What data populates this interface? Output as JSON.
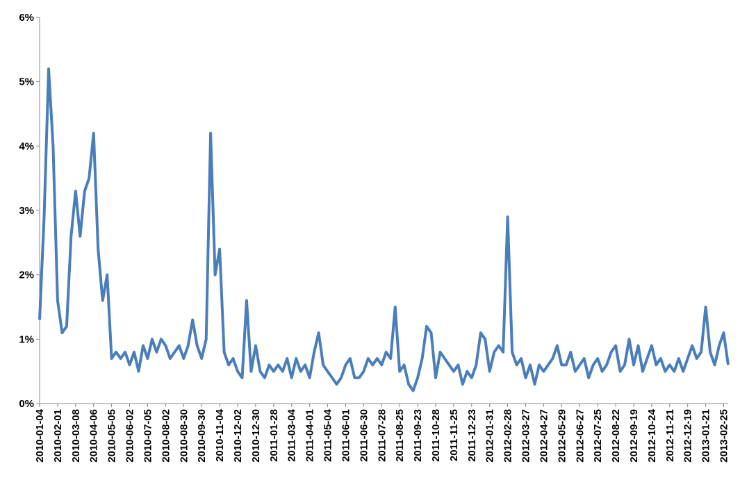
{
  "chart_data": {
    "type": "line",
    "categories": [
      "2010-01-04",
      null,
      null,
      null,
      "2010-02-01",
      null,
      null,
      null,
      "2010-03-08",
      null,
      null,
      null,
      "2010-04-06",
      null,
      null,
      null,
      "2010-05-05",
      null,
      null,
      null,
      "2010-06-02",
      null,
      null,
      null,
      "2010-07-05",
      null,
      null,
      null,
      "2010-08-02",
      null,
      null,
      null,
      "2010-08-30",
      null,
      null,
      null,
      "2010-09-30",
      null,
      null,
      null,
      "2010-11-04",
      null,
      null,
      null,
      "2010-12-02",
      null,
      null,
      null,
      "2010-12-30",
      null,
      null,
      null,
      "2011-01-28",
      null,
      null,
      null,
      "2011-03-04",
      null,
      null,
      null,
      "2011-04-01",
      null,
      null,
      null,
      "2011-05-04",
      null,
      null,
      null,
      "2011-06-01",
      null,
      null,
      null,
      "2011-06-30",
      null,
      null,
      null,
      "2011-07-28",
      null,
      null,
      null,
      "2011-08-25",
      null,
      null,
      null,
      "2011-09-23",
      null,
      null,
      null,
      "2011-10-28",
      null,
      null,
      null,
      "2011-11-25",
      null,
      null,
      null,
      "2011-12-23",
      null,
      null,
      null,
      "2012-01-31",
      null,
      null,
      null,
      "2012-02-28",
      null,
      null,
      null,
      "2012-03-27",
      null,
      null,
      null,
      "2012-04-27",
      null,
      null,
      null,
      "2012-05-29",
      null,
      null,
      null,
      "2012-06-27",
      null,
      null,
      null,
      "2012-07-25",
      null,
      null,
      null,
      "2012-08-22",
      null,
      null,
      null,
      "2012-09-19",
      null,
      null,
      null,
      "2012-10-24",
      null,
      null,
      null,
      "2012-11-21",
      null,
      null,
      null,
      "2012-12-19",
      null,
      null,
      null,
      "2013-01-21",
      null,
      null,
      null,
      "2013-02-25",
      null
    ],
    "values": [
      1.3,
      2.9,
      5.2,
      4.0,
      1.6,
      1.1,
      1.2,
      2.6,
      3.3,
      2.6,
      3.3,
      3.5,
      4.2,
      2.4,
      1.6,
      2.0,
      0.7,
      0.8,
      0.7,
      0.8,
      0.6,
      0.8,
      0.5,
      0.9,
      0.7,
      1.0,
      0.8,
      1.0,
      0.9,
      0.7,
      0.8,
      0.9,
      0.7,
      0.9,
      1.3,
      0.9,
      0.7,
      1.0,
      4.2,
      2.0,
      2.4,
      0.8,
      0.6,
      0.7,
      0.5,
      0.4,
      1.6,
      0.5,
      0.9,
      0.5,
      0.4,
      0.6,
      0.5,
      0.6,
      0.5,
      0.7,
      0.4,
      0.7,
      0.5,
      0.6,
      0.4,
      0.8,
      1.1,
      0.6,
      0.5,
      0.4,
      0.3,
      0.4,
      0.6,
      0.7,
      0.4,
      0.4,
      0.5,
      0.7,
      0.6,
      0.7,
      0.6,
      0.8,
      0.7,
      1.5,
      0.5,
      0.6,
      0.3,
      0.2,
      0.4,
      0.7,
      1.2,
      1.1,
      0.4,
      0.8,
      0.7,
      0.6,
      0.5,
      0.6,
      0.3,
      0.5,
      0.4,
      0.6,
      1.1,
      1.0,
      0.5,
      0.8,
      0.9,
      0.8,
      2.9,
      0.8,
      0.6,
      0.7,
      0.4,
      0.6,
      0.3,
      0.6,
      0.5,
      0.6,
      0.7,
      0.9,
      0.6,
      0.6,
      0.8,
      0.5,
      0.6,
      0.7,
      0.4,
      0.6,
      0.7,
      0.5,
      0.6,
      0.8,
      0.9,
      0.5,
      0.6,
      1.0,
      0.6,
      0.9,
      0.5,
      0.7,
      0.9,
      0.6,
      0.7,
      0.5,
      0.6,
      0.5,
      0.7,
      0.5,
      0.7,
      0.9,
      0.7,
      0.8,
      1.5,
      0.8,
      0.6,
      0.9,
      1.1,
      0.6
    ],
    "color": "#4a7ebb",
    "ylim": [
      0,
      6
    ],
    "yticks": [
      {
        "value": 0,
        "label": "0%"
      },
      {
        "value": 1,
        "label": "1%"
      },
      {
        "value": 2,
        "label": "2%"
      },
      {
        "value": 3,
        "label": "3%"
      },
      {
        "value": 4,
        "label": "4%"
      },
      {
        "value": 5,
        "label": "5%"
      },
      {
        "value": 6,
        "label": "6%"
      }
    ]
  }
}
